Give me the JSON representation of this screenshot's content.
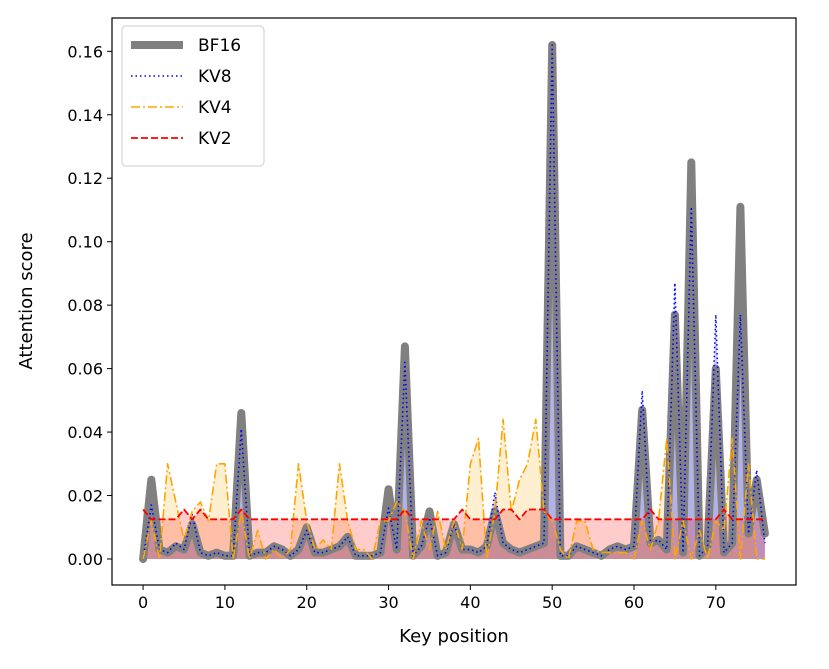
{
  "chart_data": {
    "type": "line",
    "xlabel": "Key position",
    "ylabel": "Attention score",
    "xlim": [
      -3.8,
      79.8
    ],
    "ylim": [
      -0.0082,
      0.1705
    ],
    "xticks": [
      0,
      10,
      20,
      30,
      40,
      50,
      60,
      70
    ],
    "yticks": [
      0.0,
      0.02,
      0.04,
      0.06,
      0.08,
      0.1,
      0.12,
      0.14,
      0.16
    ],
    "ytick_labels": [
      "0.00",
      "0.02",
      "0.04",
      "0.06",
      "0.08",
      "0.10",
      "0.12",
      "0.14",
      "0.16"
    ],
    "legend_position": "top-left",
    "grid": false,
    "series": [
      {
        "name": "BF16",
        "color": "#808080",
        "style": "solid-thick",
        "values": [
          0.0,
          0.025,
          0.003,
          0.002,
          0.004,
          0.003,
          0.011,
          0.002,
          0.001,
          0.002,
          0.001,
          0.001,
          0.046,
          0.001,
          0.002,
          0.002,
          0.004,
          0.003,
          0.001,
          0.003,
          0.01,
          0.002,
          0.002,
          0.003,
          0.004,
          0.007,
          0.001,
          0.001,
          0.001,
          0.002,
          0.022,
          0.003,
          0.067,
          0.001,
          0.004,
          0.015,
          0.001,
          0.002,
          0.011,
          0.003,
          0.003,
          0.002,
          0.004,
          0.015,
          0.005,
          0.003,
          0.002,
          0.003,
          0.004,
          0.005,
          0.162,
          0.001,
          0.001,
          0.004,
          0.003,
          0.002,
          0.001,
          0.003,
          0.004,
          0.003,
          0.004,
          0.047,
          0.005,
          0.006,
          0.003,
          0.077,
          0.002,
          0.125,
          0.001,
          0.004,
          0.06,
          0.002,
          0.005,
          0.111,
          0.008,
          0.025,
          0.008
        ]
      },
      {
        "name": "KV8",
        "color": "#0000ff",
        "style": "dotted",
        "values": [
          0.0,
          0.017,
          0.003,
          0.002,
          0.005,
          0.003,
          0.014,
          0.002,
          0.001,
          0.002,
          0.001,
          0.001,
          0.041,
          0.001,
          0.002,
          0.002,
          0.004,
          0.003,
          0.001,
          0.003,
          0.009,
          0.002,
          0.002,
          0.003,
          0.004,
          0.007,
          0.001,
          0.001,
          0.001,
          0.002,
          0.016,
          0.003,
          0.062,
          0.001,
          0.004,
          0.013,
          0.001,
          0.002,
          0.011,
          0.003,
          0.003,
          0.002,
          0.004,
          0.021,
          0.005,
          0.003,
          0.002,
          0.003,
          0.004,
          0.005,
          0.162,
          0.001,
          0.001,
          0.004,
          0.003,
          0.002,
          0.001,
          0.003,
          0.004,
          0.003,
          0.004,
          0.053,
          0.005,
          0.006,
          0.003,
          0.087,
          0.002,
          0.111,
          0.001,
          0.004,
          0.077,
          0.002,
          0.005,
          0.077,
          0.008,
          0.028,
          0.005
        ]
      },
      {
        "name": "KV4",
        "color": "#ffa500",
        "style": "dashdot",
        "values": [
          0.0,
          0.012,
          0.0,
          0.03,
          0.018,
          0.006,
          0.015,
          0.018,
          0.012,
          0.03,
          0.03,
          0.0,
          0.015,
          0.0,
          0.009,
          0.0,
          0.003,
          0.0,
          0.003,
          0.03,
          0.012,
          0.003,
          0.006,
          0.003,
          0.03,
          0.012,
          0.003,
          0.003,
          0.0,
          0.012,
          0.012,
          0.018,
          0.015,
          0.0,
          0.012,
          0.003,
          0.015,
          0.003,
          0.012,
          0.003,
          0.03,
          0.038,
          0.0,
          0.015,
          0.044,
          0.015,
          0.025,
          0.03,
          0.044,
          0.015,
          0.012,
          0.003,
          0.0,
          0.012,
          0.012,
          0.003,
          0.002,
          0.002,
          0.002,
          0.002,
          0.0,
          0.012,
          0.003,
          0.012,
          0.038,
          0.0,
          0.012,
          0.0,
          0.009,
          0.0,
          0.012,
          0.009,
          0.038,
          0.0,
          0.03,
          0.0,
          0.0
        ]
      },
      {
        "name": "KV2",
        "color": "#ff0000",
        "style": "dashed",
        "values": [
          0.0156,
          0.0125,
          0.0125,
          0.0125,
          0.0125,
          0.0156,
          0.0125,
          0.0156,
          0.0125,
          0.0125,
          0.0125,
          0.0125,
          0.0156,
          0.0125,
          0.0125,
          0.0125,
          0.0125,
          0.0125,
          0.0125,
          0.0125,
          0.0125,
          0.0125,
          0.0125,
          0.0125,
          0.0125,
          0.0125,
          0.0125,
          0.0125,
          0.0125,
          0.0125,
          0.0125,
          0.0125,
          0.0156,
          0.0125,
          0.0125,
          0.0125,
          0.0125,
          0.0125,
          0.0125,
          0.0156,
          0.0125,
          0.0125,
          0.0125,
          0.0125,
          0.0156,
          0.0156,
          0.0125,
          0.0156,
          0.0156,
          0.0156,
          0.0125,
          0.0125,
          0.0125,
          0.0125,
          0.0125,
          0.0125,
          0.0125,
          0.0125,
          0.0125,
          0.0125,
          0.0125,
          0.0125,
          0.0156,
          0.0125,
          0.0125,
          0.0125,
          0.0125,
          0.0125,
          0.0125,
          0.0125,
          0.0125,
          0.0156,
          0.0125,
          0.0125,
          0.0125,
          0.0125,
          0.0125
        ]
      }
    ]
  }
}
